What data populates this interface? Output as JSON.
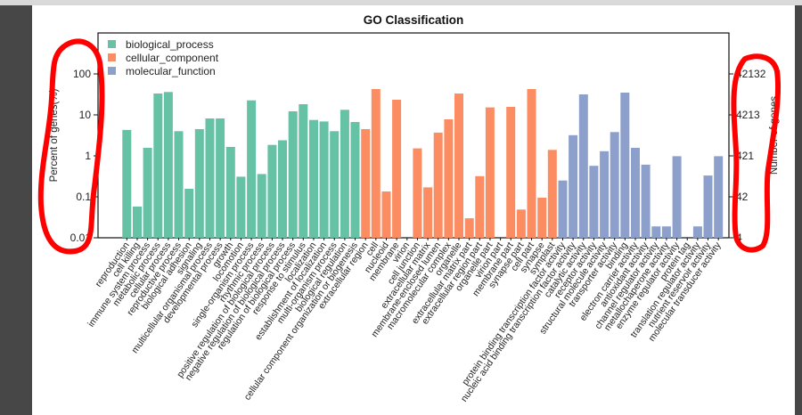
{
  "chart_data": {
    "type": "bar",
    "title": "GO Classification",
    "ylabel_left": "Percent of genes(%)",
    "ylabel_right": "Number of genes",
    "yscale": "log",
    "ylim_left": [
      0.01,
      100
    ],
    "yticks_left": [
      "100",
      "10",
      "1",
      "0.1",
      "0.01"
    ],
    "yticks_right": [
      "42132",
      "4213",
      "421",
      "42",
      "4"
    ],
    "legend_position": "top-left",
    "grid": false,
    "series": [
      {
        "name": "biological_process",
        "color": "#66c2a5",
        "categories": [
          "reproduction",
          "cell killing",
          "immune system process",
          "metabolic process",
          "cellular process",
          "reproductive process",
          "biological adhesion",
          "signaling",
          "multicellular organismal process",
          "developmental process",
          "growth",
          "locomotion",
          "single-organism process",
          "rhythmic process",
          "positive regulation of biological process",
          "negative regulation of biological process",
          "regulation of biological process",
          "response to stimulus",
          "localization",
          "establishment of localization",
          "multi-organism process",
          "biological regulation",
          "cellular component organization or biogenesis"
        ],
        "values": [
          4.3,
          0.058,
          1.57,
          33.3,
          36.2,
          4.0,
          0.157,
          4.5,
          8.2,
          8.2,
          1.65,
          0.31,
          22.6,
          0.36,
          1.85,
          2.4,
          12.2,
          18.2,
          7.5,
          6.9,
          4.0,
          13.3,
          6.7
        ]
      },
      {
        "name": "cellular_component",
        "color": "#fc8d62",
        "categories": [
          "extracellular region",
          "cell",
          "nucleoid",
          "membrane",
          "virion",
          "cell junction",
          "extracellular matrix",
          "membrane-enclosed lumen",
          "macromolecular complex",
          "organelle",
          "extracellular matrix part",
          "extracellular region part",
          "organelle part",
          "virion part",
          "membrane part",
          "synapse part",
          "cell part",
          "synapse",
          "symplast"
        ],
        "values": [
          4.5,
          42.7,
          0.135,
          23.4,
          0,
          1.52,
          0.17,
          3.7,
          7.8,
          33.3,
          0.03,
          0.32,
          15.2,
          0,
          15.7,
          0.049,
          42.7,
          0.095,
          1.4
        ]
      },
      {
        "name": "molecular_function",
        "color": "#8da0cb",
        "categories": [
          "protein binding transcription factor activity",
          "nucleic acid binding transcription factor activity",
          "catalytic activity",
          "receptor activity",
          "structural molecule activity",
          "transporter activity",
          "binding",
          "electron carrier activity",
          "antioxidant activity",
          "channel regulator activity",
          "metallochaperone activity",
          "enzyme regulator activity",
          "protein tag",
          "translation regulator activity",
          "nutrient reservoir activity",
          "molecular transducer activity"
        ],
        "values": [
          0.25,
          3.2,
          31.6,
          0.57,
          1.3,
          3.8,
          34.9,
          1.57,
          0.61,
          0.019,
          0.019,
          0.98,
          0,
          0.019,
          0.33,
          0.98
        ]
      }
    ]
  },
  "annotations": {
    "color": "#ff0000",
    "items": [
      "left-axis-circle",
      "right-axis-circle"
    ]
  }
}
